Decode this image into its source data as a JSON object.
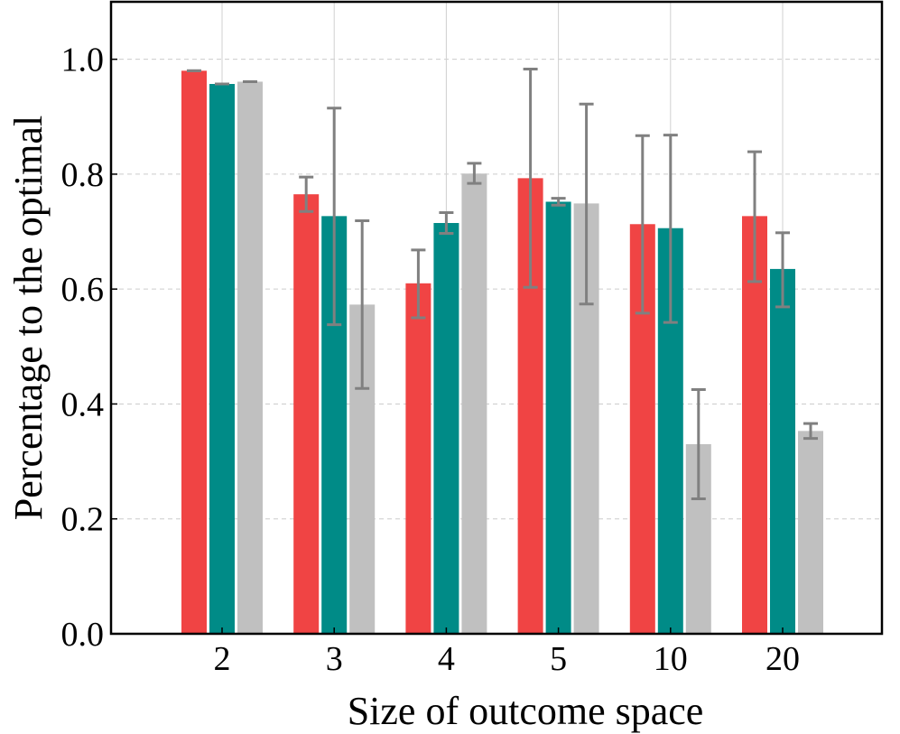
{
  "chart_data": {
    "type": "bar",
    "title": "",
    "xlabel": "Size of outcome space",
    "ylabel": "Percentage to the optimal",
    "categories": [
      "2",
      "3",
      "4",
      "5",
      "10",
      "20"
    ],
    "ylim": [
      0,
      1.1
    ],
    "yticks": [
      "0.0",
      "0.2",
      "0.4",
      "0.6",
      "0.8",
      "1.0"
    ],
    "grid": "dashed horizontal and vertical",
    "legend": "none",
    "series": [
      {
        "color": "#f04444",
        "values": [
          0.98,
          0.765,
          0.61,
          0.793,
          0.713,
          0.727
        ],
        "err_low": [
          0.98,
          0.735,
          0.55,
          0.603,
          0.558,
          0.613
        ],
        "err_high": [
          0.98,
          0.795,
          0.668,
          0.983,
          0.867,
          0.839
        ]
      },
      {
        "color": "#008b87",
        "values": [
          0.957,
          0.727,
          0.715,
          0.752,
          0.706,
          0.635
        ],
        "err_low": [
          0.957,
          0.538,
          0.697,
          0.746,
          0.542,
          0.569
        ],
        "err_high": [
          0.957,
          0.915,
          0.733,
          0.758,
          0.868,
          0.698
        ]
      },
      {
        "color": "#c0c0c0",
        "values": [
          0.961,
          0.573,
          0.801,
          0.749,
          0.33,
          0.353
        ],
        "err_low": [
          0.961,
          0.427,
          0.784,
          0.574,
          0.235,
          0.34
        ],
        "err_high": [
          0.961,
          0.719,
          0.819,
          0.922,
          0.425,
          0.366
        ]
      }
    ],
    "error_bar_color": "#808080"
  }
}
